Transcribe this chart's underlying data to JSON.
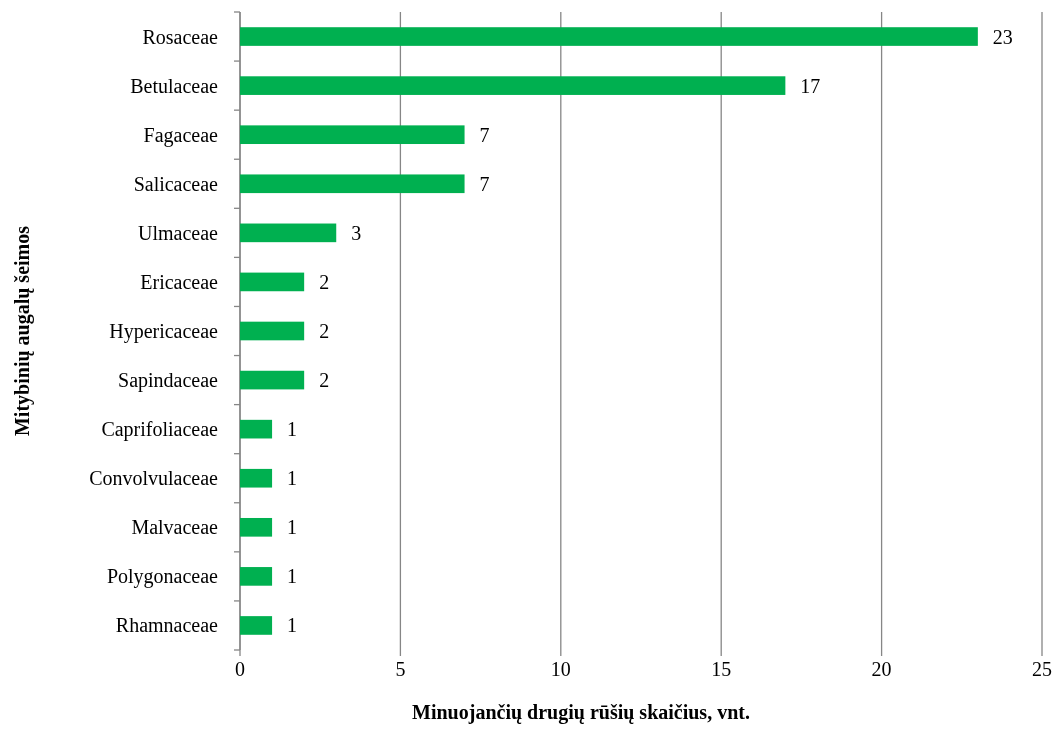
{
  "chart_data": {
    "type": "bar",
    "orientation": "horizontal",
    "xlabel": "Minuojančių drugių rūšių skaičius, vnt.",
    "ylabel": "Mitybinių augalų šeimos",
    "categories": [
      "Rosaceae",
      "Betulaceae",
      "Fagaceae",
      "Salicaceae",
      "Ulmaceae",
      "Ericaceae",
      "Hypericaceae",
      "Sapindaceae",
      "Caprifoliaceae",
      "Convolvulaceae",
      "Malvaceae",
      "Polygonaceae",
      "Rhamnaceae"
    ],
    "values": [
      23,
      17,
      7,
      7,
      3,
      2,
      2,
      2,
      1,
      1,
      1,
      1,
      1
    ],
    "color": "#00b050",
    "data_labels": true,
    "xlim": [
      0,
      25
    ],
    "xticks": [
      0,
      5,
      10,
      15,
      20,
      25
    ],
    "grid": "x"
  }
}
